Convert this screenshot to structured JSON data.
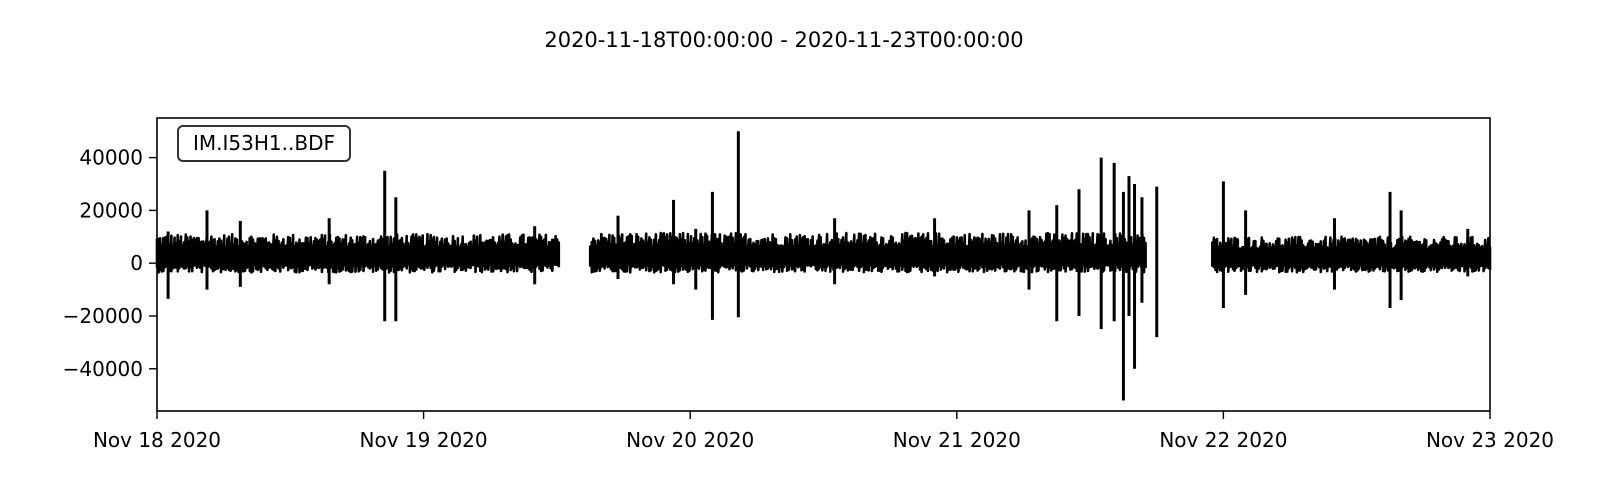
{
  "chart_data": {
    "type": "line",
    "title": "2020-11-18T00:00:00  -  2020-11-23T00:00:00",
    "trace_label": "IM.I53H1..BDF",
    "xlabel": "",
    "ylabel": "",
    "x_range": [
      "2020-11-18T00:00:00",
      "2020-11-23T00:00:00"
    ],
    "ylim": [
      -56000,
      55000
    ],
    "x_ticks": [
      {
        "date": "2020-11-18",
        "label": "Nov 18 2020"
      },
      {
        "date": "2020-11-19",
        "label": "Nov 19 2020"
      },
      {
        "date": "2020-11-20",
        "label": "Nov 20 2020"
      },
      {
        "date": "2020-11-21",
        "label": "Nov 21 2020"
      },
      {
        "date": "2020-11-22",
        "label": "Nov 22 2020"
      },
      {
        "date": "2020-11-23",
        "label": "Nov 23 2020"
      }
    ],
    "y_ticks": [
      {
        "value": 40000,
        "label": "40000"
      },
      {
        "value": 20000,
        "label": "20000"
      },
      {
        "value": 0,
        "label": "0"
      },
      {
        "value": -20000,
        "label": "−20000"
      },
      {
        "value": -40000,
        "label": "−40000"
      }
    ],
    "grid": false,
    "line_color": "#000000",
    "segments": [
      {
        "start": "2020-11-18T00:00:00",
        "end": "2020-11-19T12:10:00",
        "base": 2000,
        "amp_pos": 9000,
        "amp_neg": 5000
      },
      {
        "start": "2020-11-19T15:00:00",
        "end": "2020-11-21T17:00:00",
        "base": 2000,
        "amp_pos": 9500,
        "amp_neg": 5000
      },
      {
        "start": "2020-11-21T23:00:00",
        "end": "2020-11-23T00:00:00",
        "base": 1500,
        "amp_pos": 8500,
        "amp_neg": 4500
      }
    ],
    "peaks": [
      {
        "time": "2020-11-18T01:00:00",
        "max": 12000,
        "min": -13500
      },
      {
        "time": "2020-11-18T04:30:00",
        "max": 20000,
        "min": -10000
      },
      {
        "time": "2020-11-18T07:30:00",
        "max": 16000,
        "min": -9000
      },
      {
        "time": "2020-11-18T15:30:00",
        "max": 17000,
        "min": -8000
      },
      {
        "time": "2020-11-18T20:30:00",
        "max": 35000,
        "min": -22000
      },
      {
        "time": "2020-11-18T21:30:00",
        "max": 25000,
        "min": -22000
      },
      {
        "time": "2020-11-19T10:00:00",
        "max": 14000,
        "min": -8000
      },
      {
        "time": "2020-11-19T17:30:00",
        "max": 18000,
        "min": -6000
      },
      {
        "time": "2020-11-19T22:30:00",
        "max": 24000,
        "min": -8000
      },
      {
        "time": "2020-11-20T00:30:00",
        "max": 13000,
        "min": -10000
      },
      {
        "time": "2020-11-20T02:00:00",
        "max": 27000,
        "min": -21500
      },
      {
        "time": "2020-11-20T04:20:00",
        "max": 50000,
        "min": -20500
      },
      {
        "time": "2020-11-20T13:00:00",
        "max": 17000,
        "min": -8000
      },
      {
        "time": "2020-11-20T22:00:00",
        "max": 17000,
        "min": -5000
      },
      {
        "time": "2020-11-21T06:30:00",
        "max": 20000,
        "min": -10000
      },
      {
        "time": "2020-11-21T09:00:00",
        "max": 22000,
        "min": -22000
      },
      {
        "time": "2020-11-21T11:00:00",
        "max": 28000,
        "min": -20000
      },
      {
        "time": "2020-11-21T13:00:00",
        "max": 40000,
        "min": -25000
      },
      {
        "time": "2020-11-21T14:10:00",
        "max": 38000,
        "min": -22000
      },
      {
        "time": "2020-11-21T15:00:00",
        "max": 27000,
        "min": -52000
      },
      {
        "time": "2020-11-21T15:30:00",
        "max": 33000,
        "min": -20000
      },
      {
        "time": "2020-11-21T16:00:00",
        "max": 30000,
        "min": -40000
      },
      {
        "time": "2020-11-21T16:40:00",
        "max": 25000,
        "min": -15000
      },
      {
        "time": "2020-11-21T18:00:00",
        "max": 29000,
        "min": -28000
      },
      {
        "time": "2020-11-22T00:00:00",
        "max": 31000,
        "min": -17000
      },
      {
        "time": "2020-11-22T02:00:00",
        "max": 20000,
        "min": -12000
      },
      {
        "time": "2020-11-22T10:00:00",
        "max": 17000,
        "min": -10000
      },
      {
        "time": "2020-11-22T15:00:00",
        "max": 27000,
        "min": -17000
      },
      {
        "time": "2020-11-22T16:00:00",
        "max": 20000,
        "min": -14000
      },
      {
        "time": "2020-11-22T22:00:00",
        "max": 13000,
        "min": -5000
      }
    ]
  }
}
